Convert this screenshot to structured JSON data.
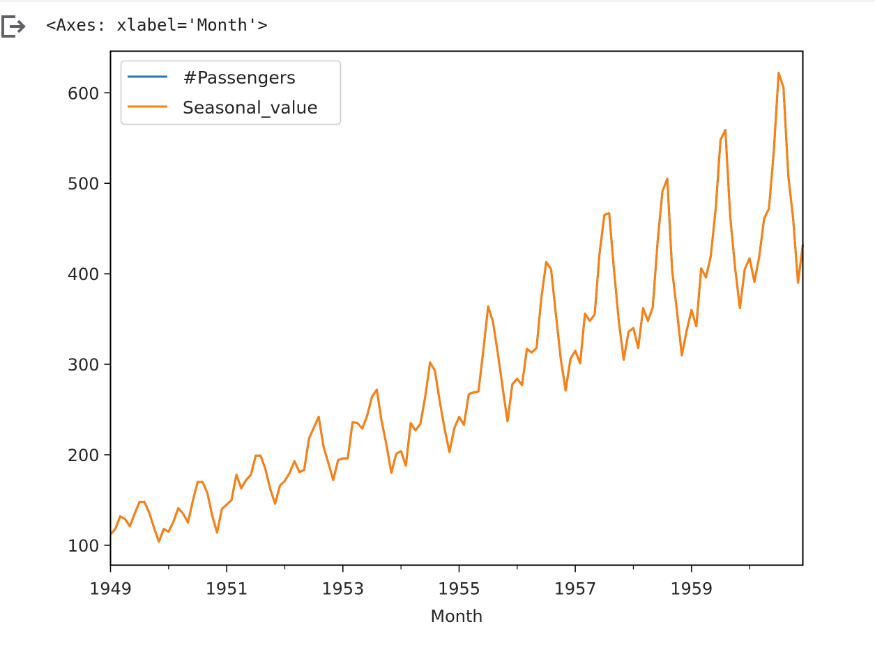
{
  "output": {
    "repr_text": "<Axes: xlabel='Month'>",
    "icon": "output-arrow-icon"
  },
  "chart_data": {
    "type": "line",
    "xlabel": "Month",
    "ylabel": "",
    "x_start": "1949-01",
    "x_end": "1960-12",
    "x_frequency": "monthly",
    "xlim": [
      "1949-01",
      "1960-12"
    ],
    "ylim": [
      78,
      646
    ],
    "x_tick_labels": [
      "1949",
      "1951",
      "1953",
      "1955",
      "1957",
      "1959"
    ],
    "x_minor_tick_years": [
      1950,
      1952,
      1954,
      1956,
      1958,
      1960
    ],
    "y_ticks": [
      100,
      200,
      300,
      400,
      500,
      600
    ],
    "y_tick_labels": [
      "100",
      "200",
      "300",
      "400",
      "500",
      "600"
    ],
    "grid": false,
    "legend_position": "top-left",
    "series": [
      {
        "name": "#Passengers",
        "color": "#1f77b4",
        "values": [
          112,
          118,
          132,
          129,
          121,
          135,
          148,
          148,
          136,
          119,
          104,
          118,
          115,
          126,
          141,
          135,
          125,
          149,
          170,
          170,
          158,
          133,
          114,
          140,
          145,
          150,
          178,
          163,
          172,
          178,
          199,
          199,
          184,
          162,
          146,
          166,
          171,
          180,
          193,
          181,
          183,
          218,
          230,
          242,
          209,
          191,
          172,
          194,
          196,
          196,
          236,
          235,
          229,
          243,
          264,
          272,
          237,
          211,
          180,
          201,
          204,
          188,
          235,
          227,
          234,
          264,
          302,
          293,
          259,
          229,
          203,
          229,
          242,
          233,
          267,
          269,
          270,
          315,
          364,
          347,
          312,
          274,
          237,
          278,
          284,
          277,
          317,
          313,
          318,
          374,
          413,
          405,
          355,
          306,
          271,
          306,
          315,
          301,
          356,
          348,
          355,
          422,
          465,
          467,
          404,
          347,
          305,
          336,
          340,
          318,
          362,
          348,
          363,
          435,
          491,
          505,
          404,
          359,
          310,
          337,
          360,
          342,
          406,
          396,
          420,
          472,
          548,
          559,
          463,
          407,
          362,
          405,
          417,
          391,
          419,
          461,
          472,
          535,
          622,
          606,
          508,
          461,
          390,
          432
        ]
      },
      {
        "name": "Seasonal_value",
        "color": "#ff7f0e",
        "values": [
          112,
          118,
          132,
          129,
          121,
          135,
          148,
          148,
          136,
          119,
          104,
          118,
          115,
          126,
          141,
          135,
          125,
          149,
          170,
          170,
          158,
          133,
          114,
          140,
          145,
          150,
          178,
          163,
          172,
          178,
          199,
          199,
          184,
          162,
          146,
          166,
          171,
          180,
          193,
          181,
          183,
          218,
          230,
          242,
          209,
          191,
          172,
          194,
          196,
          196,
          236,
          235,
          229,
          243,
          264,
          272,
          237,
          211,
          180,
          201,
          204,
          188,
          235,
          227,
          234,
          264,
          302,
          293,
          259,
          229,
          203,
          229,
          242,
          233,
          267,
          269,
          270,
          315,
          364,
          347,
          312,
          274,
          237,
          278,
          284,
          277,
          317,
          313,
          318,
          374,
          413,
          405,
          355,
          306,
          271,
          306,
          315,
          301,
          356,
          348,
          355,
          422,
          465,
          467,
          404,
          347,
          305,
          336,
          340,
          318,
          362,
          348,
          363,
          435,
          491,
          505,
          404,
          359,
          310,
          337,
          360,
          342,
          406,
          396,
          420,
          472,
          548,
          559,
          463,
          407,
          362,
          405,
          417,
          391,
          419,
          461,
          472,
          535,
          622,
          606,
          508,
          461,
          390,
          432
        ]
      }
    ]
  }
}
